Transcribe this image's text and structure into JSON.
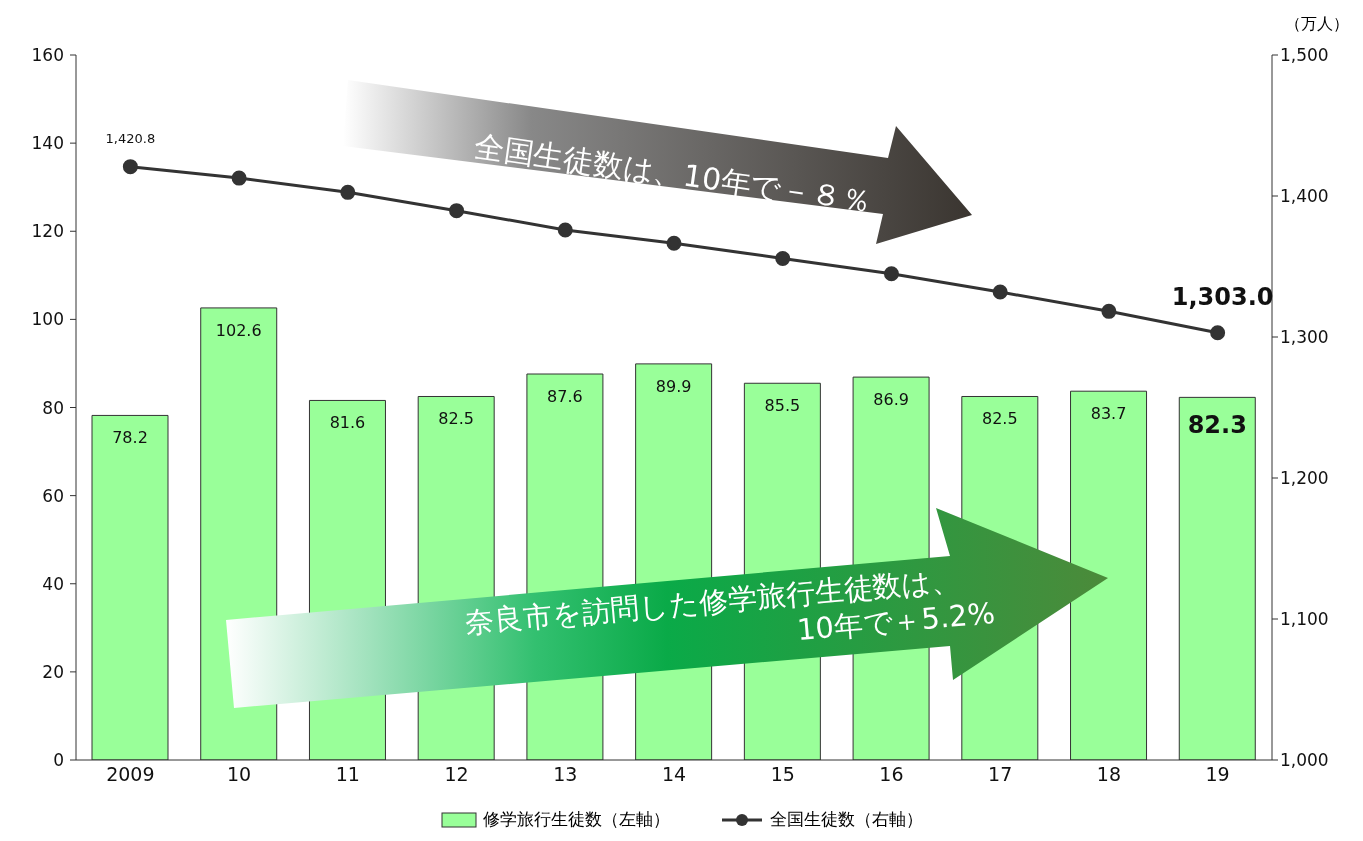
{
  "chart_data": {
    "type": "bar",
    "categories": [
      "2009",
      "10",
      "11",
      "12",
      "13",
      "14",
      "15",
      "16",
      "17",
      "18",
      "19"
    ],
    "y2label": "（万人）",
    "series": [
      {
        "name": "修学旅行生徒数（左軸）",
        "color": "#99ff99",
        "values": [
          78.2,
          102.6,
          81.6,
          82.5,
          87.6,
          89.9,
          85.5,
          86.9,
          82.5,
          83.7,
          82.3
        ]
      },
      {
        "name": "全国生徒数（右軸）",
        "type": "line",
        "axis": "y2",
        "color": "#333333",
        "values": [
          1420.8,
          1412.7,
          1402.6,
          1389.6,
          1375.9,
          1366.5,
          1355.7,
          1344.9,
          1331.9,
          1318.2,
          1303.0
        ],
        "value_labels": [
          "1,420.8",
          null,
          null,
          null,
          null,
          null,
          null,
          null,
          null,
          null,
          "1,303.0"
        ]
      }
    ],
    "data_labels": true,
    "ylim": [
      0,
      160
    ],
    "yticks": [
      0,
      20,
      40,
      60,
      80,
      100,
      120,
      140,
      160
    ],
    "y2lim": [
      1000,
      1500
    ],
    "y2ticks": [
      {
        "value": 1000,
        "label": "1,000"
      },
      {
        "value": 1100,
        "label": "1,100"
      },
      {
        "value": 1200,
        "label": "1,200"
      },
      {
        "value": 1300,
        "label": "1,300"
      },
      {
        "value": 1400,
        "label": "1,400"
      },
      {
        "value": 1500,
        "label": "1,500"
      }
    ],
    "marker": "circle",
    "line_style": "solid",
    "legend": "bottom",
    "annotations": [
      "全国生徒数は、10年で－８％",
      "奈良市を訪問した修学旅行生徒数は、\n10年で＋5.2%"
    ]
  }
}
